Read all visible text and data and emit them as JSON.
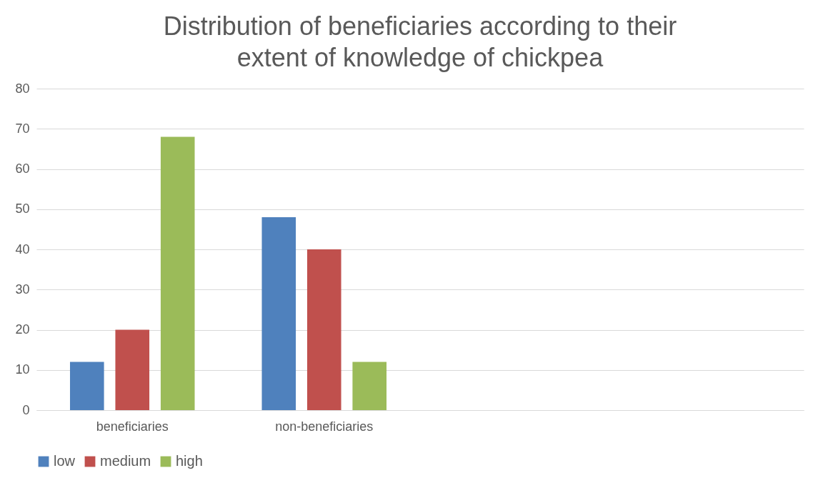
{
  "chart_data": {
    "type": "bar",
    "title": "Distribution of beneficiaries according to their extent of knowledge of chickpea",
    "categories": [
      "beneficiaries",
      "non-beneficiaries",
      null,
      null
    ],
    "series": [
      {
        "name": "low",
        "color": "#4f81bd",
        "values": [
          12,
          48,
          null,
          null
        ]
      },
      {
        "name": "medium",
        "color": "#c0504d",
        "values": [
          20,
          40,
          null,
          null
        ]
      },
      {
        "name": "high",
        "color": "#9bbb59",
        "values": [
          68,
          12,
          null,
          null
        ]
      }
    ],
    "ylim": [
      0,
      80
    ],
    "yticks": [
      0,
      10,
      20,
      30,
      40,
      50,
      60,
      70,
      80
    ],
    "grid": "y",
    "legend": "bottom"
  }
}
